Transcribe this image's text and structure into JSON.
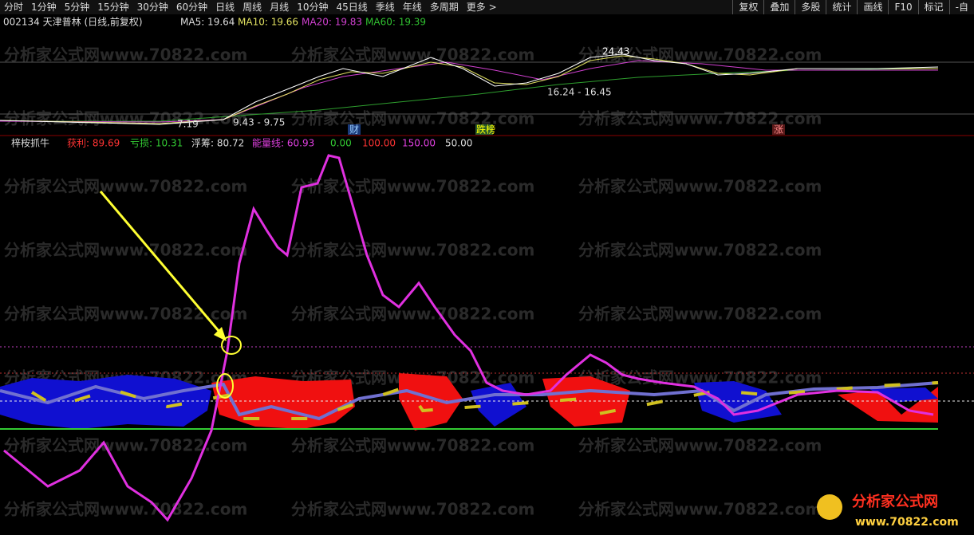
{
  "toolbar": {
    "periods": [
      "分时",
      "1分钟",
      "5分钟",
      "15分钟",
      "30分钟",
      "60分钟",
      "日线",
      "周线",
      "月线",
      "10分钟",
      "45日线",
      "季线",
      "年线",
      "多周期",
      "更多 >"
    ],
    "tools": [
      "复权",
      "叠加",
      "多股",
      "统计",
      "画线",
      "F10",
      "标记",
      "-自"
    ]
  },
  "price_panel": {
    "stock": "002134 天津普林 (日线,前复权)",
    "ma5": "MA5: 19.64",
    "ma10": "MA10: 19.66",
    "ma20": "MA20: 19.83",
    "ma60": "MA60: 19.39",
    "annotations": [
      "24.43",
      "16.24 - 16.45",
      "7.19",
      "9.43 - 9.75"
    ],
    "markers": [
      "财",
      "跌榜",
      "涨"
    ]
  },
  "indicator_panel": {
    "name": "梓桉抓牛",
    "profit": "获利: 89.69",
    "loss": "亏损: 10.31",
    "float": "浮筹: 80.72",
    "energy": "能量线: 60.93",
    "levels": [
      "0.00",
      "100.00",
      "150.00",
      "50.00"
    ]
  },
  "watermark": "分析家公式网www.70822.com",
  "logo": {
    "title": "分析家公式网",
    "url": "www.70822.com"
  }
}
